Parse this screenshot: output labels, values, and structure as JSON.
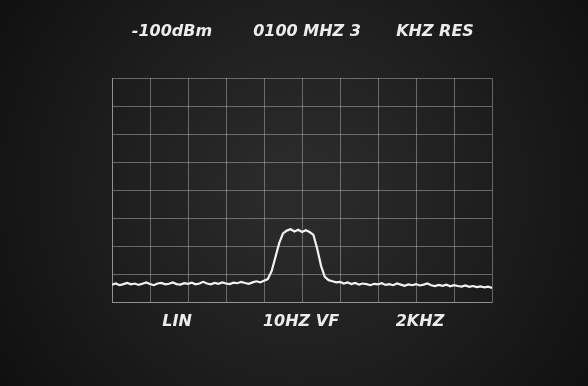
{
  "chart_data": {
    "type": "line",
    "annotations": [
      "-100dBm",
      "0100 MHZ 3",
      "KHZ RES",
      "LIN",
      "10HZ VF",
      "2KHZ"
    ],
    "x": [
      0,
      0.1,
      0.2,
      0.3,
      0.4,
      0.5,
      0.6,
      0.7,
      0.8,
      0.9,
      1,
      1.1,
      1.2,
      1.3,
      1.4,
      1.5,
      1.6,
      1.7,
      1.8,
      1.9,
      2,
      2.1,
      2.2,
      2.3,
      2.4,
      2.5,
      2.6,
      2.7,
      2.8,
      2.9,
      3,
      3.1,
      3.2,
      3.3,
      3.4,
      3.5,
      3.6,
      3.7,
      3.8,
      3.9,
      4,
      4.1,
      4.2,
      4.3,
      4.4,
      4.5,
      4.6,
      4.7,
      4.8,
      4.9,
      5,
      5.1,
      5.2,
      5.3,
      5.4,
      5.5,
      5.6,
      5.7,
      5.8,
      5.9,
      6,
      6.1,
      6.2,
      6.3,
      6.4,
      6.5,
      6.6,
      6.7,
      6.8,
      6.9,
      7,
      7.1,
      7.2,
      7.3,
      7.4,
      7.5,
      7.6,
      7.7,
      7.8,
      7.9,
      8,
      8.1,
      8.2,
      8.3,
      8.4,
      8.5,
      8.6,
      8.7,
      8.8,
      8.9,
      9,
      9.1,
      9.2,
      9.3,
      9.4,
      9.5,
      9.6,
      9.7,
      9.8,
      9.9,
      10
    ],
    "values": [
      0.62,
      0.66,
      0.6,
      0.64,
      0.68,
      0.63,
      0.66,
      0.61,
      0.65,
      0.7,
      0.64,
      0.6,
      0.66,
      0.68,
      0.63,
      0.65,
      0.7,
      0.64,
      0.62,
      0.67,
      0.65,
      0.69,
      0.63,
      0.66,
      0.72,
      0.66,
      0.63,
      0.68,
      0.65,
      0.7,
      0.66,
      0.64,
      0.69,
      0.67,
      0.72,
      0.68,
      0.65,
      0.7,
      0.74,
      0.7,
      0.76,
      0.82,
      1.1,
      1.6,
      2.1,
      2.45,
      2.55,
      2.6,
      2.52,
      2.58,
      2.5,
      2.56,
      2.5,
      2.4,
      1.9,
      1.3,
      0.9,
      0.78,
      0.74,
      0.7,
      0.72,
      0.66,
      0.7,
      0.64,
      0.68,
      0.62,
      0.66,
      0.64,
      0.6,
      0.65,
      0.63,
      0.67,
      0.61,
      0.64,
      0.6,
      0.66,
      0.62,
      0.58,
      0.63,
      0.6,
      0.64,
      0.59,
      0.62,
      0.66,
      0.6,
      0.57,
      0.61,
      0.58,
      0.62,
      0.56,
      0.6,
      0.57,
      0.55,
      0.59,
      0.54,
      0.57,
      0.53,
      0.56,
      0.52,
      0.55,
      0.5
    ],
    "color": "#f2f2f2",
    "xlim": [
      0,
      10
    ],
    "xticks": [
      0,
      1,
      2,
      3,
      4,
      5,
      6,
      7,
      8,
      9,
      10
    ],
    "ylim": [
      0,
      8
    ],
    "yticks": [
      0,
      1,
      2,
      3,
      4,
      5,
      6,
      7,
      8
    ],
    "grid": true,
    "tick_labels": false
  }
}
